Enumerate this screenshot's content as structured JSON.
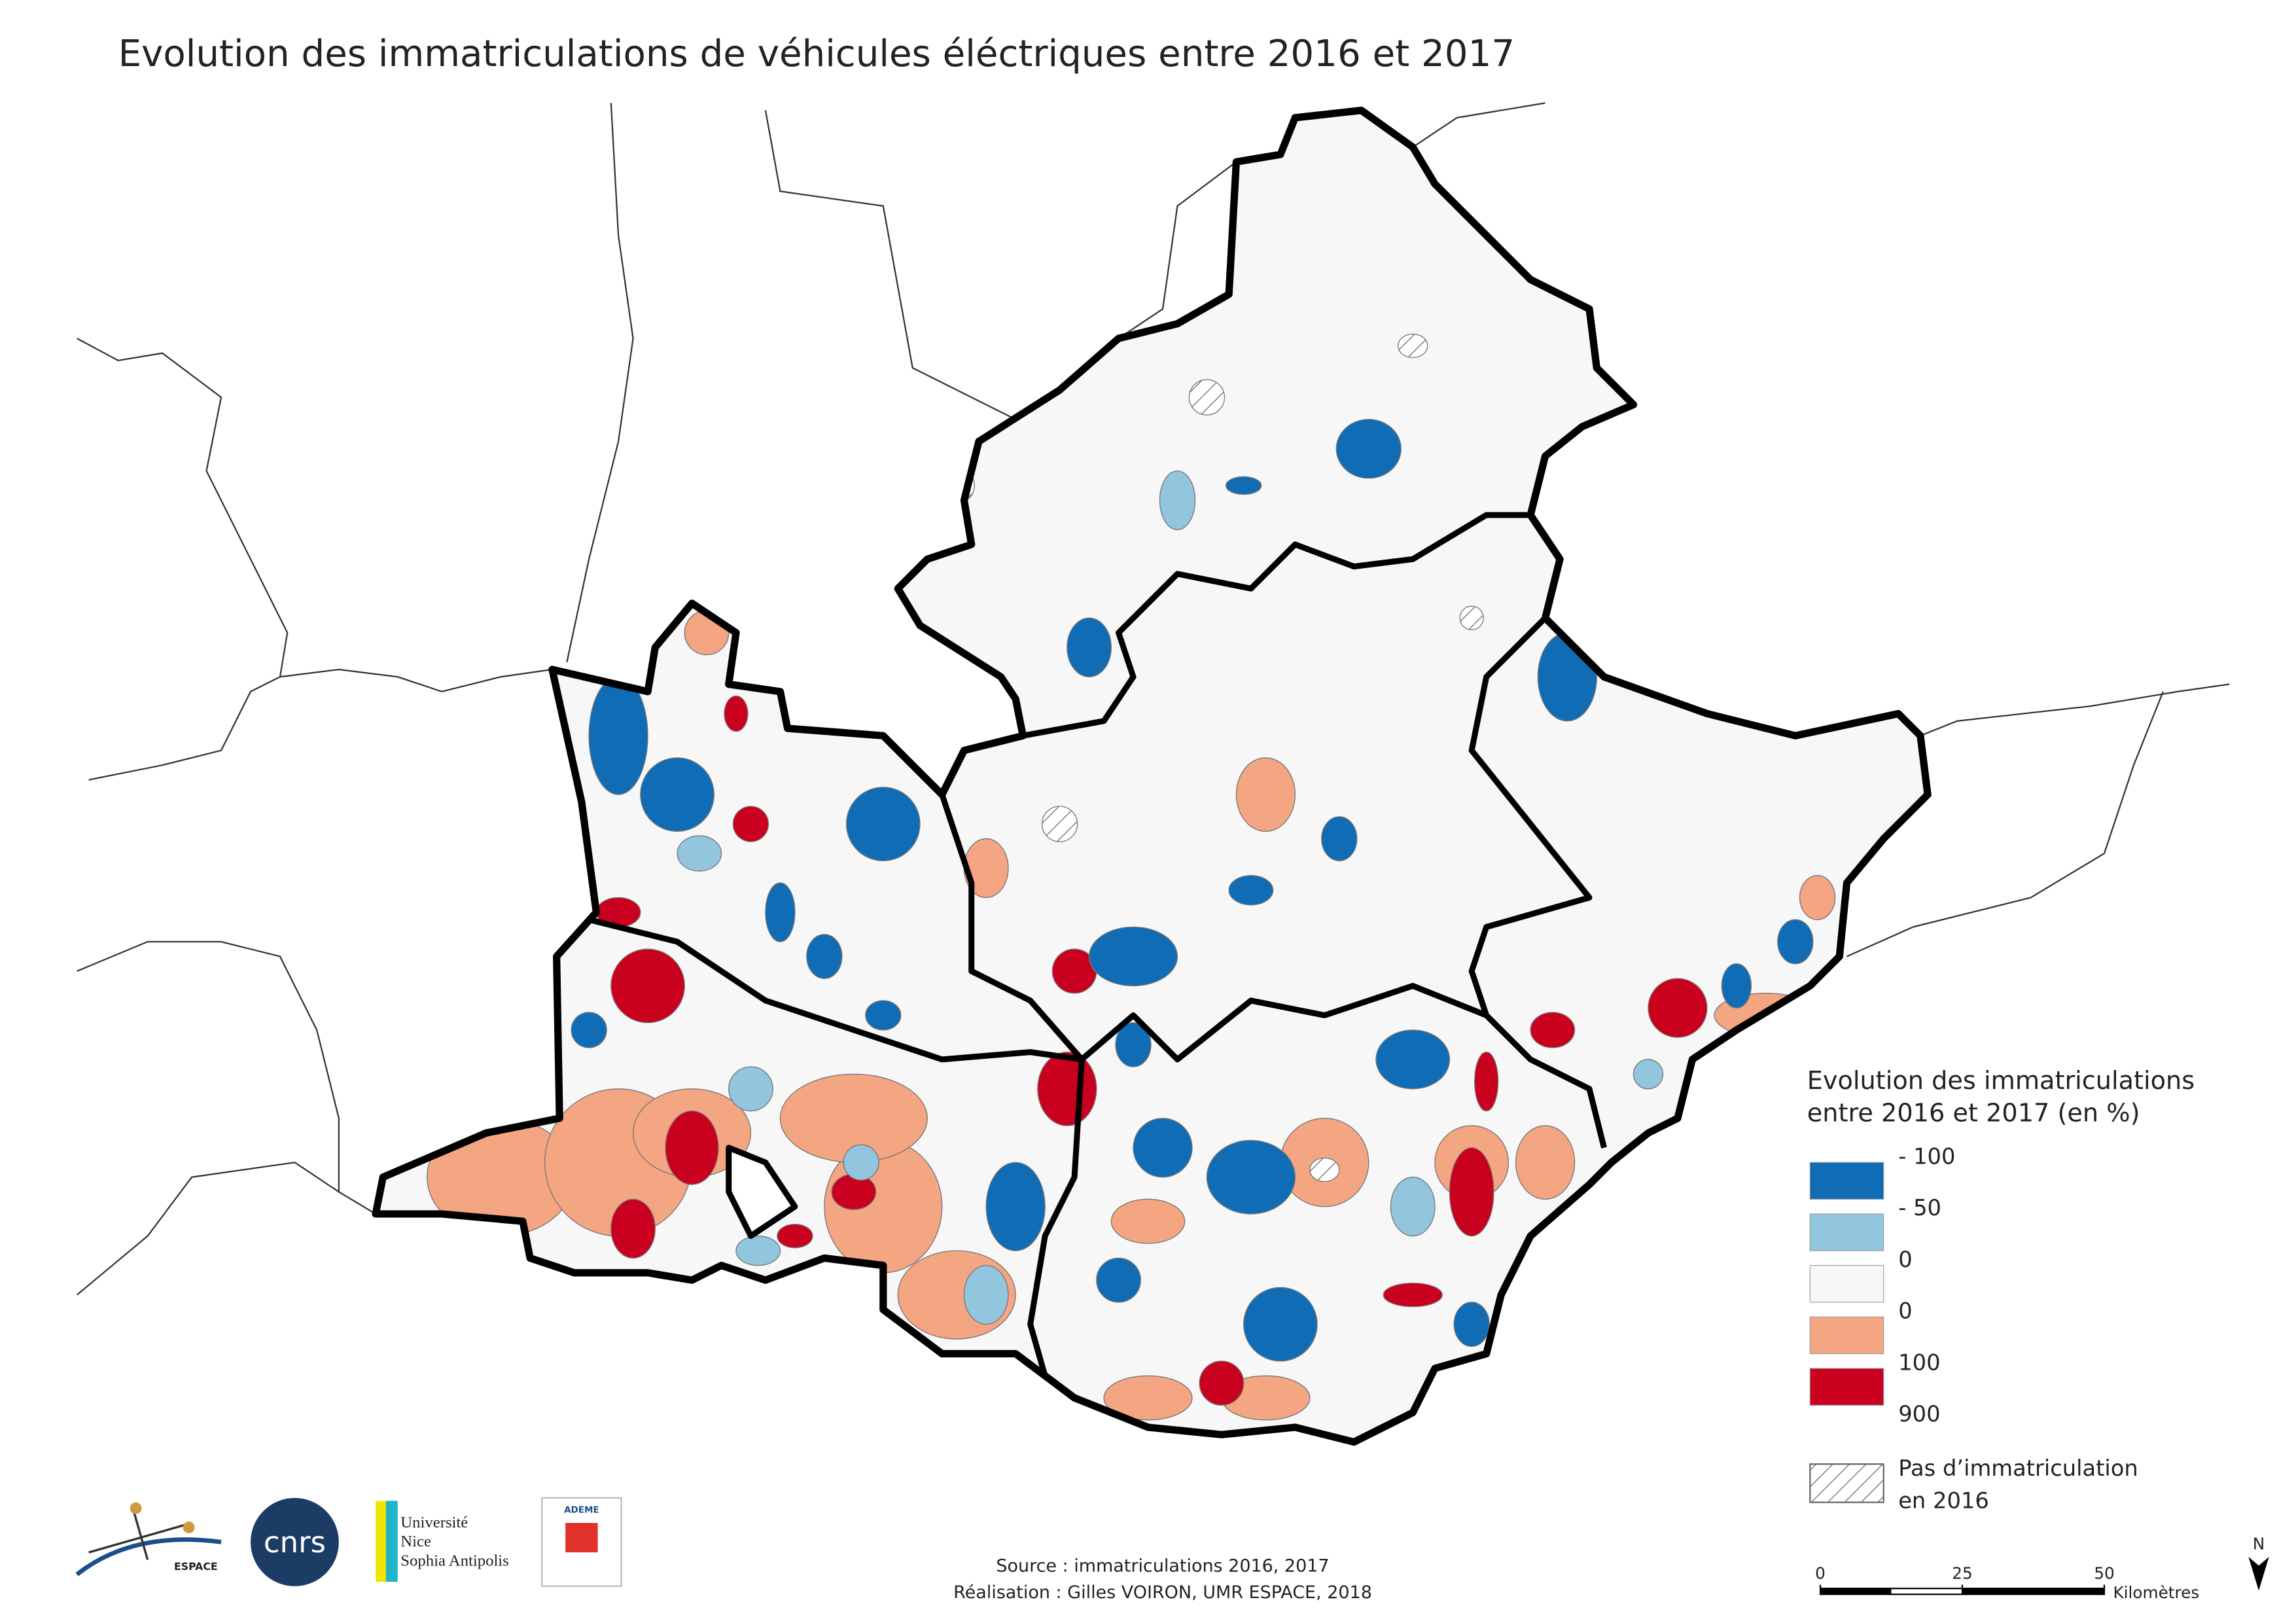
{
  "title": "Evolution des immatriculations de véhicules éléctriques entre 2016 et 2017",
  "legend": {
    "title_lines": [
      "Evolution des immatriculations",
      "entre 2016 et 2017 (en %)"
    ],
    "breaks": [
      "- 100",
      "- 50",
      "0",
      "0",
      "100",
      "900"
    ],
    "class_colors": [
      "#0f6cb5",
      "#92c5de",
      "#f7f7f7",
      "#f4a582",
      "#c9001e"
    ],
    "hatch_label_lines": [
      "Pas d’immatriculation",
      "en 2016"
    ]
  },
  "scale_bar": {
    "ticks": [
      0,
      25,
      50
    ],
    "unit": "Kilomètres"
  },
  "north": "N",
  "source": "Source : immatriculations 2016, 2017",
  "credit": "Réalisation : Gilles VOIRON, UMR ESPACE, 2018",
  "logos": {
    "espace": "ESPACE",
    "cnrs": "cnrs",
    "university": [
      "Université",
      "Nice",
      "Sophia Antipolis"
    ],
    "ademe": "ADEME"
  }
}
